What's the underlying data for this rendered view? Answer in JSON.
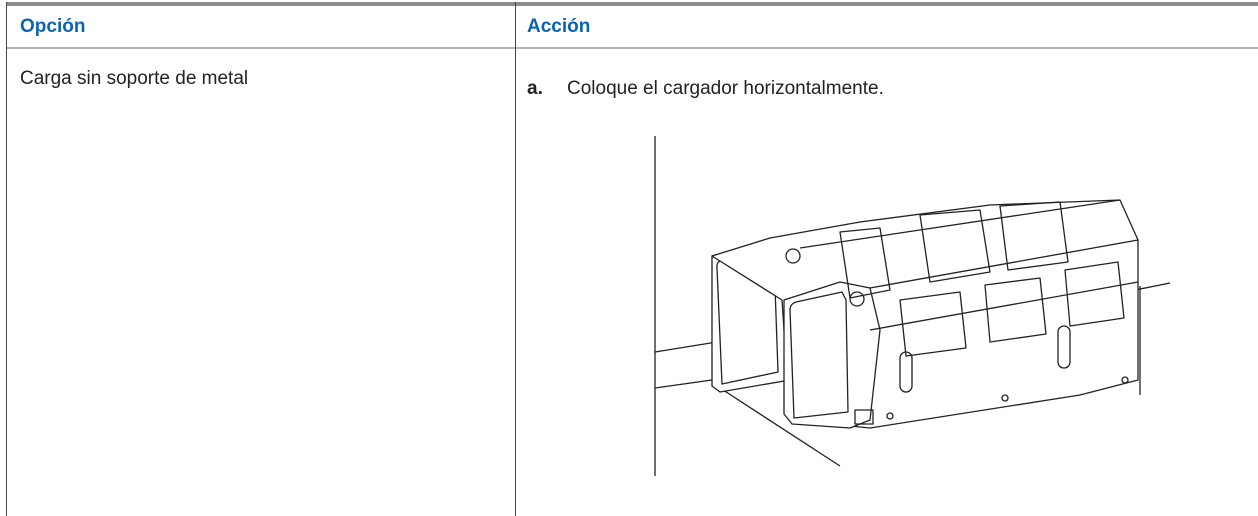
{
  "table": {
    "headers": [
      "Opción",
      "Acción"
    ],
    "rows": [
      {
        "option": "Carga sin soporte de metal",
        "step_marker": "a.",
        "step_text": "Coloque el cargador horizontalmente."
      }
    ]
  }
}
